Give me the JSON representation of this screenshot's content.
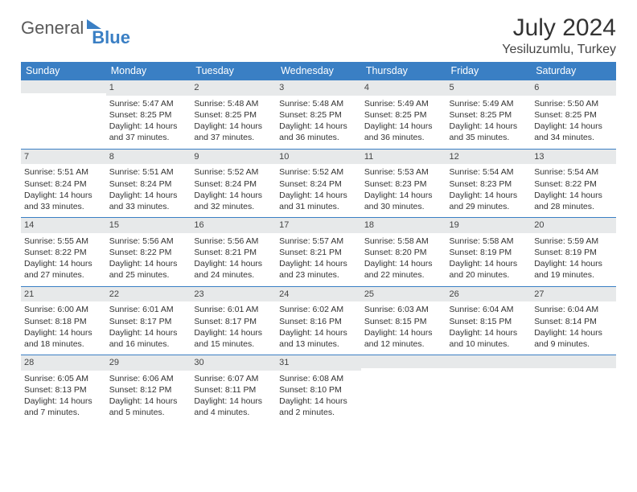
{
  "logo": {
    "general": "General",
    "blue": "Blue"
  },
  "header": {
    "month_title": "July 2024",
    "location": "Yesiluzumlu, Turkey"
  },
  "colors": {
    "accent": "#3a7fc4",
    "header_text": "#ffffff",
    "daybar_bg": "#e7e9ea",
    "row_border": "#3a7fc4",
    "body_text": "#333333"
  },
  "weekdays": [
    "Sunday",
    "Monday",
    "Tuesday",
    "Wednesday",
    "Thursday",
    "Friday",
    "Saturday"
  ],
  "days": [
    {
      "num": "",
      "sunrise": "",
      "sunset": "",
      "daylight": ""
    },
    {
      "num": "1",
      "sunrise": "Sunrise: 5:47 AM",
      "sunset": "Sunset: 8:25 PM",
      "daylight": "Daylight: 14 hours and 37 minutes."
    },
    {
      "num": "2",
      "sunrise": "Sunrise: 5:48 AM",
      "sunset": "Sunset: 8:25 PM",
      "daylight": "Daylight: 14 hours and 37 minutes."
    },
    {
      "num": "3",
      "sunrise": "Sunrise: 5:48 AM",
      "sunset": "Sunset: 8:25 PM",
      "daylight": "Daylight: 14 hours and 36 minutes."
    },
    {
      "num": "4",
      "sunrise": "Sunrise: 5:49 AM",
      "sunset": "Sunset: 8:25 PM",
      "daylight": "Daylight: 14 hours and 36 minutes."
    },
    {
      "num": "5",
      "sunrise": "Sunrise: 5:49 AM",
      "sunset": "Sunset: 8:25 PM",
      "daylight": "Daylight: 14 hours and 35 minutes."
    },
    {
      "num": "6",
      "sunrise": "Sunrise: 5:50 AM",
      "sunset": "Sunset: 8:25 PM",
      "daylight": "Daylight: 14 hours and 34 minutes."
    },
    {
      "num": "7",
      "sunrise": "Sunrise: 5:51 AM",
      "sunset": "Sunset: 8:24 PM",
      "daylight": "Daylight: 14 hours and 33 minutes."
    },
    {
      "num": "8",
      "sunrise": "Sunrise: 5:51 AM",
      "sunset": "Sunset: 8:24 PM",
      "daylight": "Daylight: 14 hours and 33 minutes."
    },
    {
      "num": "9",
      "sunrise": "Sunrise: 5:52 AM",
      "sunset": "Sunset: 8:24 PM",
      "daylight": "Daylight: 14 hours and 32 minutes."
    },
    {
      "num": "10",
      "sunrise": "Sunrise: 5:52 AM",
      "sunset": "Sunset: 8:24 PM",
      "daylight": "Daylight: 14 hours and 31 minutes."
    },
    {
      "num": "11",
      "sunrise": "Sunrise: 5:53 AM",
      "sunset": "Sunset: 8:23 PM",
      "daylight": "Daylight: 14 hours and 30 minutes."
    },
    {
      "num": "12",
      "sunrise": "Sunrise: 5:54 AM",
      "sunset": "Sunset: 8:23 PM",
      "daylight": "Daylight: 14 hours and 29 minutes."
    },
    {
      "num": "13",
      "sunrise": "Sunrise: 5:54 AM",
      "sunset": "Sunset: 8:22 PM",
      "daylight": "Daylight: 14 hours and 28 minutes."
    },
    {
      "num": "14",
      "sunrise": "Sunrise: 5:55 AM",
      "sunset": "Sunset: 8:22 PM",
      "daylight": "Daylight: 14 hours and 27 minutes."
    },
    {
      "num": "15",
      "sunrise": "Sunrise: 5:56 AM",
      "sunset": "Sunset: 8:22 PM",
      "daylight": "Daylight: 14 hours and 25 minutes."
    },
    {
      "num": "16",
      "sunrise": "Sunrise: 5:56 AM",
      "sunset": "Sunset: 8:21 PM",
      "daylight": "Daylight: 14 hours and 24 minutes."
    },
    {
      "num": "17",
      "sunrise": "Sunrise: 5:57 AM",
      "sunset": "Sunset: 8:21 PM",
      "daylight": "Daylight: 14 hours and 23 minutes."
    },
    {
      "num": "18",
      "sunrise": "Sunrise: 5:58 AM",
      "sunset": "Sunset: 8:20 PM",
      "daylight": "Daylight: 14 hours and 22 minutes."
    },
    {
      "num": "19",
      "sunrise": "Sunrise: 5:58 AM",
      "sunset": "Sunset: 8:19 PM",
      "daylight": "Daylight: 14 hours and 20 minutes."
    },
    {
      "num": "20",
      "sunrise": "Sunrise: 5:59 AM",
      "sunset": "Sunset: 8:19 PM",
      "daylight": "Daylight: 14 hours and 19 minutes."
    },
    {
      "num": "21",
      "sunrise": "Sunrise: 6:00 AM",
      "sunset": "Sunset: 8:18 PM",
      "daylight": "Daylight: 14 hours and 18 minutes."
    },
    {
      "num": "22",
      "sunrise": "Sunrise: 6:01 AM",
      "sunset": "Sunset: 8:17 PM",
      "daylight": "Daylight: 14 hours and 16 minutes."
    },
    {
      "num": "23",
      "sunrise": "Sunrise: 6:01 AM",
      "sunset": "Sunset: 8:17 PM",
      "daylight": "Daylight: 14 hours and 15 minutes."
    },
    {
      "num": "24",
      "sunrise": "Sunrise: 6:02 AM",
      "sunset": "Sunset: 8:16 PM",
      "daylight": "Daylight: 14 hours and 13 minutes."
    },
    {
      "num": "25",
      "sunrise": "Sunrise: 6:03 AM",
      "sunset": "Sunset: 8:15 PM",
      "daylight": "Daylight: 14 hours and 12 minutes."
    },
    {
      "num": "26",
      "sunrise": "Sunrise: 6:04 AM",
      "sunset": "Sunset: 8:15 PM",
      "daylight": "Daylight: 14 hours and 10 minutes."
    },
    {
      "num": "27",
      "sunrise": "Sunrise: 6:04 AM",
      "sunset": "Sunset: 8:14 PM",
      "daylight": "Daylight: 14 hours and 9 minutes."
    },
    {
      "num": "28",
      "sunrise": "Sunrise: 6:05 AM",
      "sunset": "Sunset: 8:13 PM",
      "daylight": "Daylight: 14 hours and 7 minutes."
    },
    {
      "num": "29",
      "sunrise": "Sunrise: 6:06 AM",
      "sunset": "Sunset: 8:12 PM",
      "daylight": "Daylight: 14 hours and 5 minutes."
    },
    {
      "num": "30",
      "sunrise": "Sunrise: 6:07 AM",
      "sunset": "Sunset: 8:11 PM",
      "daylight": "Daylight: 14 hours and 4 minutes."
    },
    {
      "num": "31",
      "sunrise": "Sunrise: 6:08 AM",
      "sunset": "Sunset: 8:10 PM",
      "daylight": "Daylight: 14 hours and 2 minutes."
    },
    {
      "num": "",
      "sunrise": "",
      "sunset": "",
      "daylight": ""
    },
    {
      "num": "",
      "sunrise": "",
      "sunset": "",
      "daylight": ""
    },
    {
      "num": "",
      "sunrise": "",
      "sunset": "",
      "daylight": ""
    }
  ]
}
